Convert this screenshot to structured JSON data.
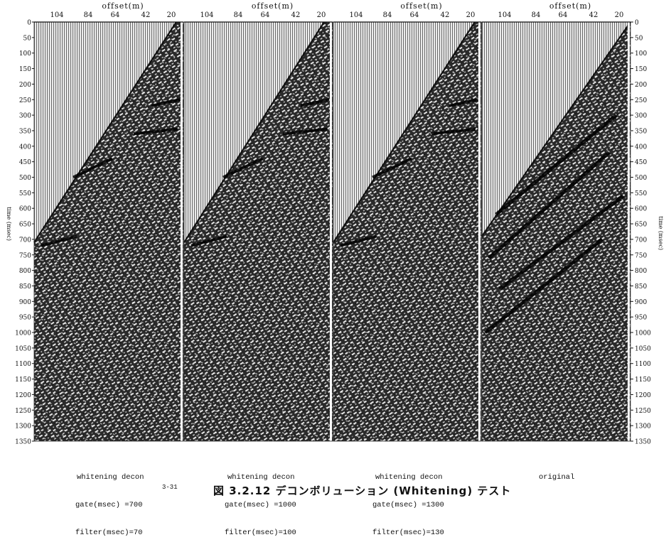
{
  "figure": {
    "caption": "図 3.2.12 デコンボリューション (Whitening) テスト",
    "page_number": "3-31",
    "y_axis_label": "time (msec)",
    "time_ticks": [
      0,
      50,
      100,
      150,
      200,
      250,
      300,
      350,
      400,
      450,
      500,
      550,
      600,
      650,
      700,
      750,
      800,
      850,
      900,
      950,
      1000,
      1050,
      1100,
      1150,
      1200,
      1250,
      1300,
      1350
    ],
    "panels": [
      {
        "offset_label": "offset(m)",
        "offset_ticks": [
          "104",
          "84",
          "64",
          "42",
          "20"
        ],
        "caption_lines": [
          "whitening decon",
          "gate(msec) =700",
          "filter(msec)=70"
        ]
      },
      {
        "offset_label": "offset(m)",
        "offset_ticks": [
          "104",
          "84",
          "64",
          "42",
          "20"
        ],
        "caption_lines": [
          "whitening decon",
          "gate(msec) =1000",
          "filter(msec)=100"
        ]
      },
      {
        "offset_label": "offset(m)",
        "offset_ticks": [
          "104",
          "84",
          "64",
          "42",
          "20"
        ],
        "caption_lines": [
          "whitening decon",
          "gate(msec) =1300",
          "filter(msec)=130"
        ]
      },
      {
        "offset_label": "offset(m)",
        "offset_ticks": [
          "104",
          "84",
          "64",
          "42",
          "20"
        ],
        "caption_lines": [
          "original"
        ]
      }
    ]
  }
}
